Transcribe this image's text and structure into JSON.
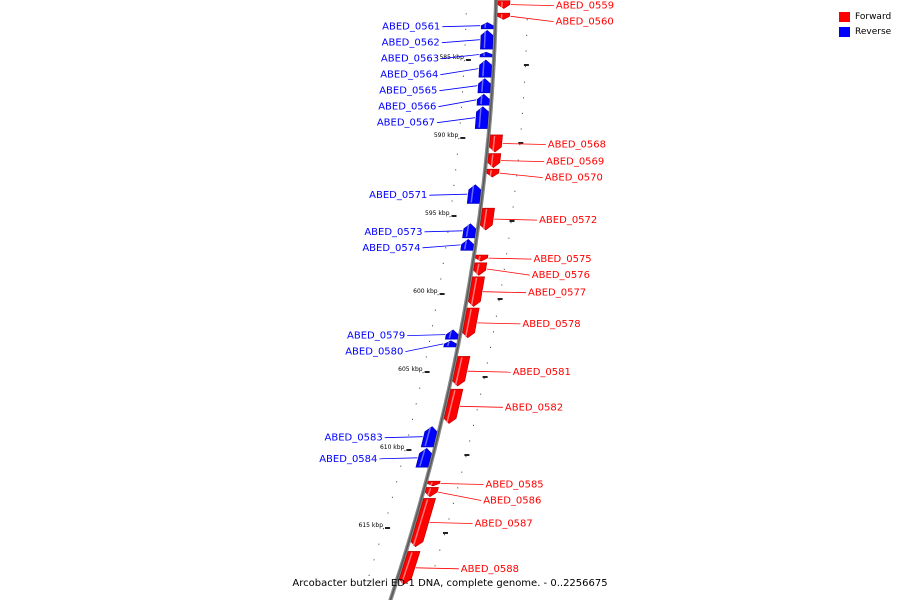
{
  "legend": {
    "forward_label": "Forward",
    "reverse_label": "Reverse",
    "forward_color": "#ff0000",
    "reverse_color": "#0000ff"
  },
  "caption": "Arcobacter butzleri ED-1 DNA, complete genome. - 0..2256675",
  "scale": {
    "unit": "kbp",
    "ticks": [
      {
        "label": "585 kbp",
        "kbp": 585
      },
      {
        "label": "590 kbp",
        "kbp": 590
      },
      {
        "label": "595 kbp",
        "kbp": 595
      },
      {
        "label": "600 kbp",
        "kbp": 600
      },
      {
        "label": "605 kbp",
        "kbp": 605
      },
      {
        "label": "610 kbp",
        "kbp": 610
      },
      {
        "label": "615 kbp",
        "kbp": 615
      }
    ]
  },
  "genes": [
    {
      "id": "ABED_0559",
      "strand": "forward",
      "start": 581.2,
      "end": 581.7
    },
    {
      "id": "ABED_0560",
      "strand": "forward",
      "start": 582.0,
      "end": 582.4
    },
    {
      "id": "ABED_0561",
      "strand": "reverse",
      "start": 582.6,
      "end": 583.0
    },
    {
      "id": "ABED_0562",
      "strand": "reverse",
      "start": 583.1,
      "end": 584.3
    },
    {
      "id": "ABED_0563",
      "strand": "reverse",
      "start": 584.5,
      "end": 584.8
    },
    {
      "id": "ABED_0564",
      "strand": "reverse",
      "start": 585.0,
      "end": 586.1
    },
    {
      "id": "ABED_0565",
      "strand": "reverse",
      "start": 586.2,
      "end": 587.1
    },
    {
      "id": "ABED_0566",
      "strand": "reverse",
      "start": 587.2,
      "end": 587.9
    },
    {
      "id": "ABED_0567",
      "strand": "reverse",
      "start": 588.0,
      "end": 589.4
    },
    {
      "id": "ABED_0568",
      "strand": "forward",
      "start": 589.8,
      "end": 590.9
    },
    {
      "id": "ABED_0569",
      "strand": "forward",
      "start": 591.0,
      "end": 591.9
    },
    {
      "id": "ABED_0570",
      "strand": "forward",
      "start": 592.0,
      "end": 592.5
    },
    {
      "id": "ABED_0571",
      "strand": "reverse",
      "start": 593.0,
      "end": 594.2
    },
    {
      "id": "ABED_0572",
      "strand": "forward",
      "start": 594.5,
      "end": 595.9
    },
    {
      "id": "ABED_0573",
      "strand": "reverse",
      "start": 595.5,
      "end": 596.4
    },
    {
      "id": "ABED_0574",
      "strand": "reverse",
      "start": 596.5,
      "end": 597.2
    },
    {
      "id": "ABED_0575",
      "strand": "forward",
      "start": 597.5,
      "end": 597.9
    },
    {
      "id": "ABED_0576",
      "strand": "forward",
      "start": 598.0,
      "end": 598.8
    },
    {
      "id": "ABED_0577",
      "strand": "forward",
      "start": 598.9,
      "end": 600.8
    },
    {
      "id": "ABED_0578",
      "strand": "forward",
      "start": 600.9,
      "end": 602.8
    },
    {
      "id": "ABED_0579",
      "strand": "reverse",
      "start": 602.3,
      "end": 602.9
    },
    {
      "id": "ABED_0580",
      "strand": "reverse",
      "start": 603.0,
      "end": 603.4
    },
    {
      "id": "ABED_0581",
      "strand": "forward",
      "start": 604.0,
      "end": 605.9
    },
    {
      "id": "ABED_0582",
      "strand": "forward",
      "start": 606.1,
      "end": 608.3
    },
    {
      "id": "ABED_0583",
      "strand": "reverse",
      "start": 608.5,
      "end": 609.8
    },
    {
      "id": "ABED_0584",
      "strand": "reverse",
      "start": 609.9,
      "end": 611.1
    },
    {
      "id": "ABED_0585",
      "strand": "forward",
      "start": 612.0,
      "end": 612.3
    },
    {
      "id": "ABED_0586",
      "strand": "forward",
      "start": 612.4,
      "end": 613.0
    },
    {
      "id": "ABED_0587",
      "strand": "forward",
      "start": 613.1,
      "end": 616.2
    },
    {
      "id": "ABED_0588",
      "strand": "forward",
      "start": 616.5,
      "end": 618.6
    }
  ]
}
